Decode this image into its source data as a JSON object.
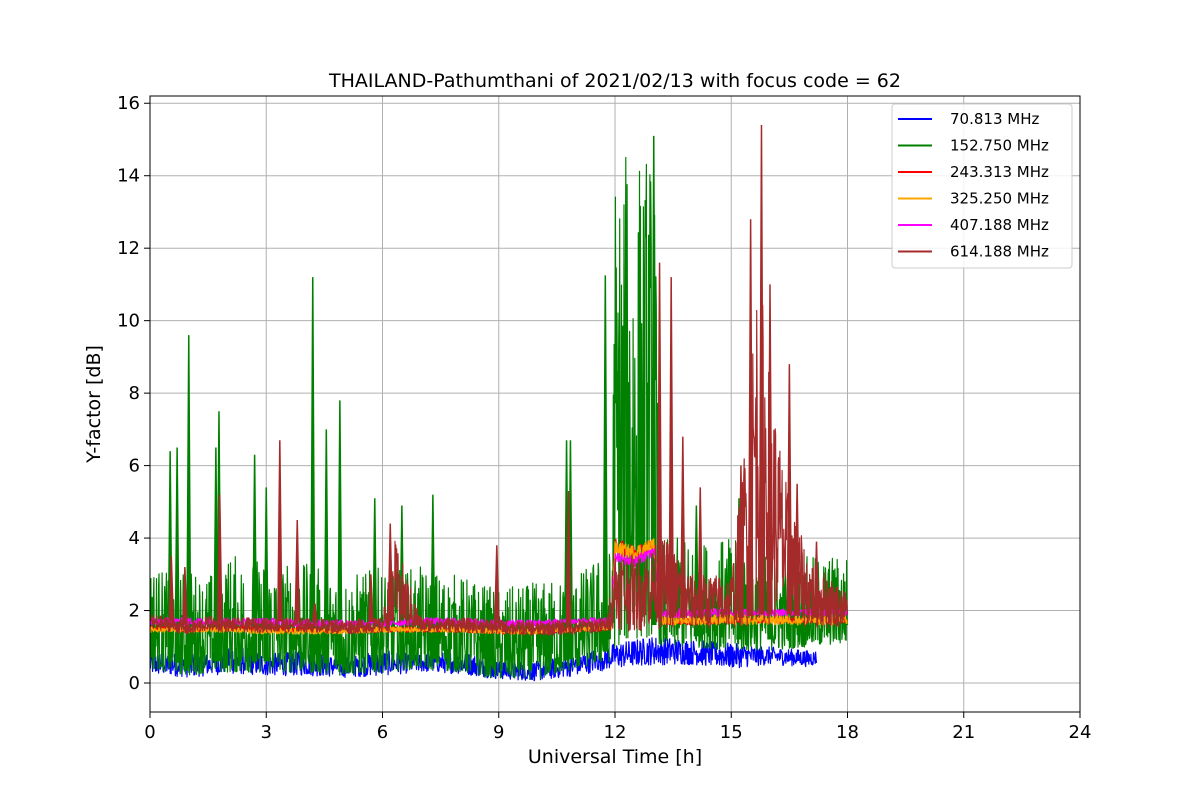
{
  "chart_data": {
    "type": "line",
    "title": "THAILAND-Pathumthani of 2021/02/13 with focus code = 62",
    "xlabel": "Universal Time [h]",
    "ylabel": "Y-factor [dB]",
    "xlim": [
      0,
      24
    ],
    "ylim": [
      -0.8,
      16.2
    ],
    "xticks": [
      0,
      3,
      6,
      9,
      12,
      15,
      18,
      21,
      24
    ],
    "yticks": [
      0,
      2,
      4,
      6,
      8,
      10,
      12,
      14,
      16
    ],
    "grid": true,
    "legend_position": "top-right",
    "series": [
      {
        "name": "70.813 MHz",
        "legend_label": " 70.813 MHz",
        "color": "#0000ff",
        "x": [
          0,
          0.5,
          1,
          1.5,
          2,
          3,
          4,
          5,
          6,
          7,
          8,
          9,
          10,
          11,
          12,
          13,
          14,
          15,
          16,
          17,
          17.2
        ],
        "low": [
          0.2,
          0.2,
          0.15,
          0.2,
          0.25,
          0.2,
          0.2,
          0.15,
          0.2,
          0.3,
          0.25,
          0.1,
          0.05,
          0.2,
          0.4,
          0.5,
          0.5,
          0.4,
          0.5,
          0.45,
          0.5
        ],
        "high": [
          0.9,
          0.8,
          0.9,
          0.8,
          1.1,
          0.8,
          0.9,
          0.7,
          0.9,
          0.8,
          0.9,
          0.6,
          0.6,
          0.8,
          1.1,
          1.3,
          1.2,
          1.1,
          1.0,
          0.9,
          0.9
        ]
      },
      {
        "name": "152.750 MHz",
        "legend_label": "152.750 MHz",
        "color": "#008000",
        "x": [
          0,
          0.5,
          1,
          1.5,
          2,
          3,
          4,
          5,
          6,
          7,
          8,
          9,
          10,
          11,
          11.9,
          12,
          12.5,
          13,
          13.2,
          14,
          15,
          16,
          17,
          18
        ],
        "low": [
          0.4,
          0.3,
          0.2,
          0.3,
          0.3,
          0.3,
          0.3,
          0.2,
          0.3,
          0.4,
          0.3,
          0.1,
          0.1,
          0.4,
          0.6,
          1.0,
          1.2,
          1.3,
          1.0,
          1.0,
          0.9,
          0.9,
          1.0,
          1.1
        ],
        "high": [
          3.5,
          3.0,
          3.2,
          3.0,
          3.6,
          3.4,
          3.3,
          3.0,
          3.2,
          3.2,
          3.0,
          2.6,
          2.8,
          3.0,
          3.8,
          14.5,
          14.8,
          15.0,
          4.0,
          4.0,
          4.0,
          3.5,
          3.5,
          3.6
        ],
        "spikes": [
          [
            0.52,
            6.4
          ],
          [
            0.7,
            6.5
          ],
          [
            1.0,
            9.6
          ],
          [
            1.7,
            6.5
          ],
          [
            1.78,
            7.5
          ],
          [
            2.7,
            6.3
          ],
          [
            3.0,
            5.4
          ],
          [
            4.2,
            11.2
          ],
          [
            4.55,
            7.0
          ],
          [
            4.9,
            7.8
          ],
          [
            5.8,
            5.1
          ],
          [
            6.5,
            4.9
          ],
          [
            7.3,
            5.2
          ],
          [
            10.75,
            6.7
          ],
          [
            10.85,
            6.7
          ],
          [
            11.75,
            11.25
          ],
          [
            13.0,
            15.1
          ],
          [
            14.1,
            4.9
          ],
          [
            15.2,
            5.1
          ],
          [
            16.0,
            5.5
          ]
        ]
      },
      {
        "name": "243.313 MHz",
        "legend_label": "243.313 MHz",
        "color": "#ff0000",
        "x": [
          0,
          1,
          2,
          3,
          4,
          5,
          6,
          7,
          8,
          9,
          10,
          11,
          11.9,
          12,
          12.5,
          13,
          13.2,
          14,
          15,
          16,
          17,
          18
        ],
        "low": [
          1.45,
          1.4,
          1.45,
          1.4,
          1.4,
          1.35,
          1.4,
          1.4,
          1.4,
          1.35,
          1.35,
          1.4,
          1.45,
          3.6,
          3.4,
          3.7,
          1.6,
          1.6,
          1.65,
          1.65,
          1.65,
          1.65
        ],
        "high": [
          1.6,
          1.55,
          1.6,
          1.55,
          1.55,
          1.5,
          1.55,
          1.55,
          1.55,
          1.5,
          1.5,
          1.55,
          1.6,
          4.0,
          3.8,
          4.0,
          1.8,
          1.8,
          1.8,
          1.8,
          1.8,
          1.8
        ]
      },
      {
        "name": "325.250 MHz",
        "legend_label": "325.250 MHz",
        "color": "#ffa500",
        "x": [
          0,
          1,
          2,
          3,
          4,
          5,
          6,
          7,
          8,
          9,
          10,
          11,
          11.9,
          12,
          12.5,
          13,
          13.2,
          14,
          15,
          16,
          17,
          18
        ],
        "low": [
          1.4,
          1.4,
          1.4,
          1.35,
          1.35,
          1.35,
          1.4,
          1.4,
          1.4,
          1.35,
          1.35,
          1.4,
          1.45,
          3.5,
          3.4,
          3.6,
          1.6,
          1.6,
          1.6,
          1.6,
          1.6,
          1.6
        ],
        "high": [
          1.55,
          1.55,
          1.55,
          1.5,
          1.5,
          1.5,
          1.55,
          1.55,
          1.55,
          1.5,
          1.5,
          1.55,
          1.6,
          3.9,
          3.8,
          4.0,
          1.9,
          1.9,
          1.9,
          1.9,
          1.9,
          1.9
        ]
      },
      {
        "name": "407.188 MHz",
        "legend_label": "407.188 MHz",
        "color": "#ff00ff",
        "x": [
          0,
          1,
          2,
          3,
          4,
          5,
          6,
          7,
          8,
          9,
          10,
          11,
          11.9,
          12,
          12.5,
          13,
          13.2,
          14,
          15,
          16,
          17,
          18
        ],
        "low": [
          1.6,
          1.6,
          1.6,
          1.6,
          1.55,
          1.55,
          1.55,
          1.6,
          1.6,
          1.55,
          1.55,
          1.6,
          1.6,
          3.3,
          3.2,
          3.5,
          1.8,
          1.8,
          1.85,
          1.85,
          1.85,
          1.85
        ],
        "high": [
          1.8,
          1.8,
          1.8,
          1.8,
          1.75,
          1.75,
          1.75,
          1.8,
          1.8,
          1.75,
          1.75,
          1.8,
          1.8,
          3.6,
          3.5,
          3.8,
          2.05,
          2.05,
          2.05,
          2.05,
          2.05,
          2.05
        ]
      },
      {
        "name": "614.188 MHz",
        "legend_label": "614.188 MHz",
        "color": "#a52a2a",
        "x": [
          0,
          0.6,
          1,
          1.5,
          2,
          3,
          4,
          5,
          6,
          6.3,
          7,
          8,
          9,
          10,
          11,
          11.8,
          12,
          12.5,
          13,
          13.3,
          14,
          15,
          15.3,
          15.7,
          16,
          16.5,
          17,
          17.5,
          18
        ],
        "low": [
          1.5,
          1.4,
          1.3,
          1.45,
          1.4,
          1.4,
          1.4,
          1.35,
          1.4,
          1.4,
          1.4,
          1.4,
          1.35,
          1.3,
          1.35,
          1.4,
          1.5,
          1.4,
          1.5,
          1.5,
          1.5,
          1.5,
          1.5,
          1.6,
          1.6,
          1.6,
          1.5,
          1.5,
          1.6
        ],
        "high": [
          1.9,
          1.8,
          1.7,
          1.85,
          1.8,
          1.8,
          1.8,
          1.75,
          1.8,
          4.0,
          1.8,
          1.8,
          1.75,
          1.7,
          1.75,
          1.8,
          3.8,
          3.5,
          3.8,
          4.0,
          3.0,
          3.0,
          6.0,
          12.0,
          8.5,
          5.0,
          3.5,
          3.0,
          2.5
        ],
        "spikes": [
          [
            0.55,
            3.5
          ],
          [
            0.9,
            3.2
          ],
          [
            1.8,
            5.2
          ],
          [
            3.35,
            6.7
          ],
          [
            3.8,
            4.5
          ],
          [
            4.25,
            2.2
          ],
          [
            5.7,
            3.0
          ],
          [
            6.2,
            4.4
          ],
          [
            8.95,
            3.8
          ],
          [
            10.8,
            5.3
          ],
          [
            13.15,
            11.6
          ],
          [
            13.45,
            11.2
          ],
          [
            13.75,
            6.8
          ],
          [
            14.2,
            5.4
          ],
          [
            15.25,
            6.0
          ],
          [
            15.5,
            12.8
          ],
          [
            15.78,
            15.4
          ],
          [
            16.0,
            11.0
          ],
          [
            16.5,
            8.8
          ],
          [
            16.7,
            5.5
          ],
          [
            17.2,
            3.9
          ]
        ]
      }
    ]
  }
}
